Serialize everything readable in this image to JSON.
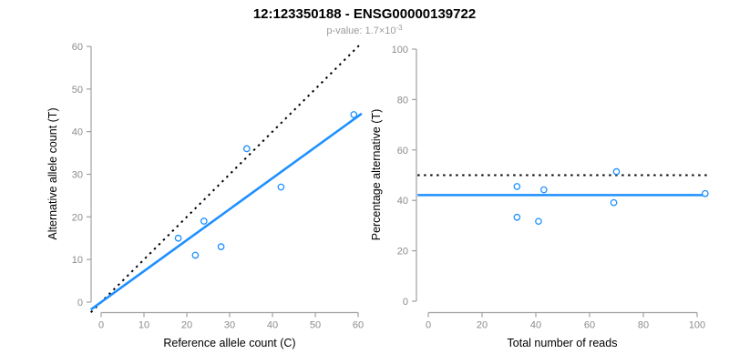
{
  "header": {
    "title": "12:123350188 - ENSG00000139722",
    "subtitle": {
      "label": "p-value:",
      "mantissa": "1.7",
      "times_base": "×10",
      "exponent": "-3"
    }
  },
  "palette": {
    "accent_blue": "#1E90FF",
    "line_black": "#000000",
    "axis_gray": "#a0a0a0",
    "tick_label_gray": "#8c8c8c",
    "axis_title_black": "#000000",
    "background": "#ffffff"
  },
  "chart_data": [
    {
      "id": "ref-vs-alt",
      "type": "scatter",
      "xlabel": "Reference allele count (C)",
      "ylabel": "Alternative allele count (T)",
      "xlim": [
        0,
        60
      ],
      "ylim": [
        0,
        60
      ],
      "xticks": [
        0,
        10,
        20,
        30,
        40,
        50,
        60
      ],
      "yticks": [
        0,
        10,
        20,
        30,
        40,
        50,
        60
      ],
      "grid": false,
      "legend": "none",
      "points": [
        {
          "x": 18,
          "y": 15
        },
        {
          "x": 22,
          "y": 11
        },
        {
          "x": 24,
          "y": 19
        },
        {
          "x": 28,
          "y": 13
        },
        {
          "x": 34,
          "y": 36
        },
        {
          "x": 42,
          "y": 27
        },
        {
          "x": 59,
          "y": 44
        }
      ],
      "lines": [
        {
          "name": "identity-line",
          "style": "dotted",
          "color": "#000000",
          "slope": 1,
          "intercept": 0
        },
        {
          "name": "fit-line",
          "style": "solid",
          "color": "#1E90FF",
          "slope": 0.727,
          "intercept": 0
        }
      ]
    },
    {
      "id": "reads-vs-percentage",
      "type": "scatter",
      "xlabel": "Total number of reads",
      "ylabel": "Percentage alternative (T)",
      "xlim": [
        0,
        100
      ],
      "ylim": [
        0,
        100
      ],
      "xticks": [
        0,
        20,
        40,
        60,
        80,
        100
      ],
      "yticks": [
        0,
        20,
        40,
        60,
        80,
        100
      ],
      "grid": false,
      "legend": "none",
      "points": [
        {
          "x": 33,
          "y": 45.5
        },
        {
          "x": 33,
          "y": 33.3
        },
        {
          "x": 43,
          "y": 44.2
        },
        {
          "x": 41,
          "y": 31.7
        },
        {
          "x": 70,
          "y": 51.4
        },
        {
          "x": 69,
          "y": 39.1
        },
        {
          "x": 103,
          "y": 42.7
        }
      ],
      "lines": [
        {
          "name": "fifty-percent-line",
          "style": "dotted",
          "color": "#000000",
          "hline": 50
        },
        {
          "name": "mean-percentage-line",
          "style": "solid",
          "color": "#1E90FF",
          "hline": 42.1
        }
      ]
    }
  ]
}
